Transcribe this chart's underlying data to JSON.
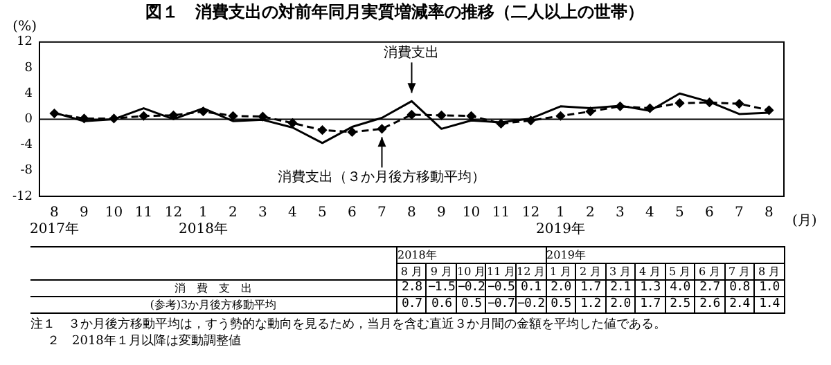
{
  "chart_data": {
    "type": "line",
    "title": "図１　消費支出の対前年同月実質増減率の推移（二人以上の世帯）",
    "ylabel": "(%)",
    "xlabel": "(月)",
    "categories": [
      "8\n2017年",
      "9",
      "10",
      "11",
      "12",
      "1\n2018年",
      "2",
      "3",
      "4",
      "5",
      "6",
      "7",
      "8",
      "9",
      "10",
      "11",
      "12",
      "1\n2019年",
      "2",
      "3",
      "4",
      "5",
      "6",
      "7",
      "8"
    ],
    "series": [
      {
        "color": "#000000",
        "marker": "none",
        "line_style": "solid",
        "values": [
          1.0,
          -0.3,
          0.0,
          1.7,
          0.0,
          1.7,
          -0.3,
          -0.1,
          -1.3,
          -3.7,
          -1.2,
          0.2,
          2.8,
          -1.5,
          -0.2,
          -0.5,
          0.1,
          2.0,
          1.7,
          2.1,
          1.3,
          4.0,
          2.7,
          0.8,
          1.0
        ],
        "value_labels": [
          null,
          null,
          null,
          null,
          null,
          null,
          null,
          null,
          null,
          null,
          null,
          null,
          "2.8",
          "−1.5",
          "−0.2",
          "−0.5",
          "0.1",
          "2.0",
          "1.7",
          "2.1",
          "1.3",
          "4.0",
          "2.7",
          "0.8",
          "1.0"
        ]
      },
      {
        "color": "#000000",
        "marker": "diamond",
        "line_style": "dashed",
        "values": [
          0.9,
          0.1,
          0.1,
          0.5,
          0.6,
          1.2,
          0.5,
          0.4,
          -0.6,
          -1.7,
          -2.0,
          -1.5,
          0.7,
          0.6,
          0.5,
          -0.7,
          -0.2,
          0.5,
          1.2,
          2.0,
          1.7,
          2.5,
          2.6,
          2.4,
          1.4
        ],
        "value_labels": [
          null,
          null,
          null,
          null,
          null,
          null,
          null,
          null,
          null,
          null,
          null,
          null,
          "0.7",
          "0.6",
          "0.5",
          "−0.7",
          "−0.2",
          "0.5",
          "1.2",
          "2.0",
          "1.7",
          "2.5",
          "2.6",
          "2.4",
          "1.4"
        ]
      }
    ],
    "ylim": [
      -12,
      12
    ],
    "yticks": [
      -12,
      -8,
      -4,
      0,
      4,
      8,
      12
    ],
    "grid": false,
    "legend": false,
    "ref_lines": [
      {
        "axis": "y",
        "value": 0
      }
    ],
    "annotations": [
      "2018年",
      "2019年",
      "8 月",
      "9 月",
      "10 月",
      "11 月",
      "12 月",
      "1 月",
      "2 月",
      "3 月",
      "4 月",
      "5 月",
      "6 月",
      "7 月",
      "8 月",
      "消　費　支　出",
      "(参考)3か月後方移動平均",
      "注１　３か月後方移動平均は，すう勢的な動向を見るため，当月を含む直近３か月間の金額を平均した値である。",
      "２　2018年１月以降は変動調整値",
      {
        "text": "消費支出",
        "x": "8",
        "y": 2.8
      },
      {
        "text": "消費支出（３か月後方移動平均）",
        "x": "7",
        "y": -1.5
      }
    ]
  }
}
